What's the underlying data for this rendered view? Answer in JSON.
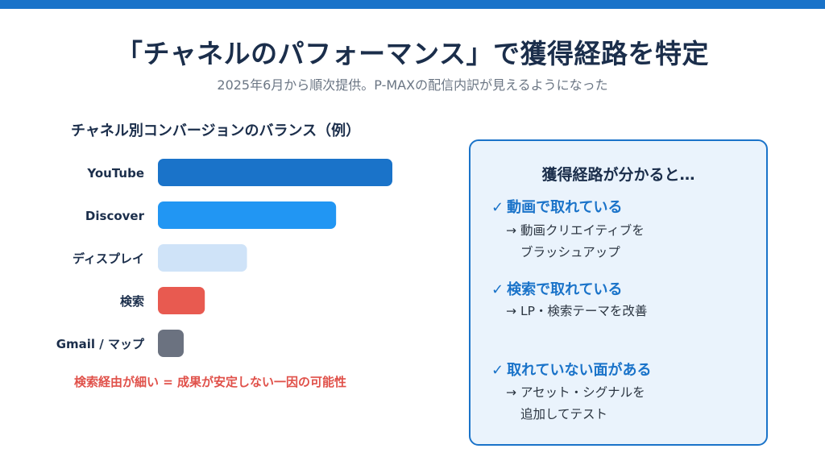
{
  "header": {
    "title": "「チャネルのパフォーマンス」で獲得経路を特定",
    "subtitle": "2025年6月から順次提供。P-MAXの配信内訳が見えるようになった"
  },
  "chart_data": {
    "type": "bar",
    "orientation": "horizontal",
    "title": "チャネル別コンバージョンのバランス（例）",
    "categories": [
      "YouTube",
      "Discover",
      "ディスプレイ",
      "検索",
      "Gmail / マップ"
    ],
    "values": [
      100,
      76,
      38,
      20,
      11
    ],
    "value_scale": "relative (example, no axis printed)",
    "colors": [
      "#1a73c9",
      "#2196f3",
      "#cfe3f8",
      "#e85a50",
      "#6b7280"
    ],
    "grid": false,
    "legend": "none",
    "note": "検索経由が細い = 成果が安定しない一因の可能性"
  },
  "panel": {
    "title": "獲得経路が分かると…",
    "check": "✓",
    "arrow": "→",
    "items": [
      {
        "heading": "動画で取れている",
        "line1": "動画クリエイティブを",
        "line2": "ブラッシュアップ"
      },
      {
        "heading": "検索で取れている",
        "line1": "LP・検索テーマを改善",
        "line2": ""
      },
      {
        "heading": "取れていない面がある",
        "line1": "アセット・シグナルを",
        "line2": "追加してテスト"
      }
    ]
  },
  "colors": {
    "accent": "#1a73c9",
    "title": "#1b2e4b",
    "warning": "#e0514a",
    "panel_bg": "#eaf3fc"
  }
}
